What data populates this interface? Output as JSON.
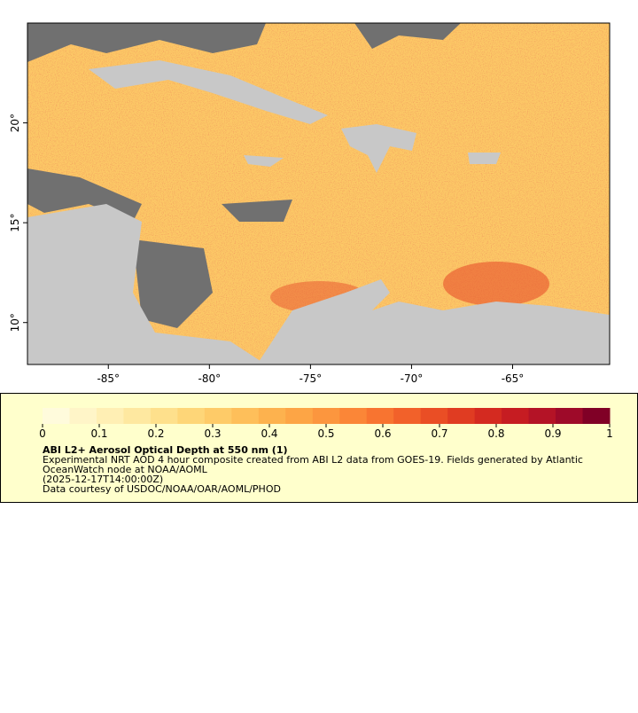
{
  "map": {
    "xlim": [
      -89,
      -60.2
    ],
    "ylim": [
      7.9,
      25
    ],
    "xticks": [
      {
        "value": -85,
        "label": "-85°"
      },
      {
        "value": -80,
        "label": "-80°"
      },
      {
        "value": -75,
        "label": "-75°"
      },
      {
        "value": -70,
        "label": "-70°"
      },
      {
        "value": -65,
        "label": "-65°"
      }
    ],
    "yticks": [
      {
        "value": 10,
        "label": "10°"
      },
      {
        "value": 15,
        "label": "15°"
      },
      {
        "value": 20,
        "label": "20°"
      }
    ]
  },
  "colorbar": {
    "lim": [
      0,
      1
    ],
    "ticks": [
      0,
      0.1,
      0.2,
      0.3,
      0.4,
      0.5,
      0.6,
      0.7,
      0.8,
      0.9,
      1
    ],
    "colors": [
      "#fffbdc",
      "#fff5c8",
      "#ffefb4",
      "#fee8a0",
      "#fee08c",
      "#fed678",
      "#fecb68",
      "#febf5a",
      "#fdb24e",
      "#fda545",
      "#fc963e",
      "#fb8637",
      "#f87430",
      "#f2612a",
      "#ea4e25",
      "#e03c22",
      "#d42a20",
      "#c61c22",
      "#b41326",
      "#9e0a29",
      "#800026"
    ]
  },
  "legend": {
    "title": "ABI L2+ Aerosol Optical Depth at 550 nm (1)",
    "lines": [
      "Experimental NRT AOD 4 hour composite created from ABI L2 data from GOES-19. Fields generated by Atlantic",
      "OceanWatch node at NOAA/AOML",
      "(2025-12-17T14:00:00Z)",
      "Data courtesy of USDOC/NOAA/OAR/AOML/PHOD"
    ]
  }
}
